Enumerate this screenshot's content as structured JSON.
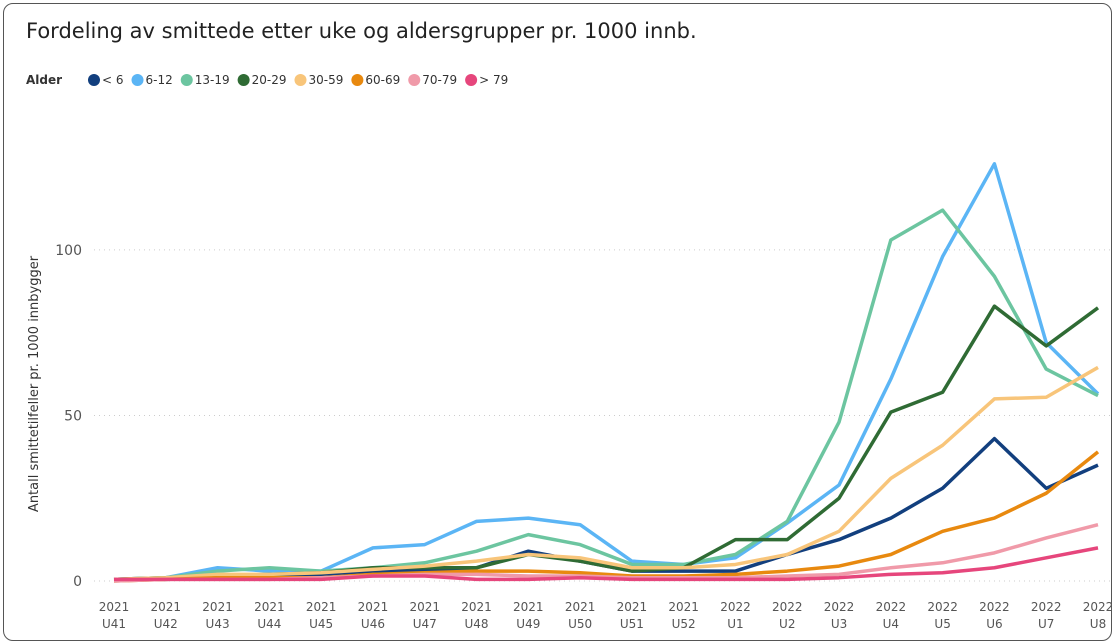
{
  "chart_data": {
    "type": "line",
    "title": "Fordeling av smittede etter uke og aldersgrupper pr. 1000 innb.",
    "legend_title": "Alder",
    "y_label": "Antall smittetilfeller pr. 1000 innbygger",
    "category_years": [
      "2021",
      "2021",
      "2021",
      "2021",
      "2021",
      "2021",
      "2021",
      "2021",
      "2021",
      "2021",
      "2021",
      "2021",
      "2022",
      "2022",
      "2022",
      "2022",
      "2022",
      "2022",
      "2022",
      "2022"
    ],
    "categories": [
      "U41",
      "U42",
      "U43",
      "U44",
      "U45",
      "U46",
      "U47",
      "U48",
      "U49",
      "U50",
      "U51",
      "U52",
      "U1",
      "U2",
      "U3",
      "U4",
      "U5",
      "U6",
      "U7",
      "U8"
    ],
    "ylim": [
      0,
      135
    ],
    "yticks": [
      0,
      50,
      100
    ],
    "grid": true,
    "series": [
      {
        "name": "< 6",
        "color": "#123f7e",
        "values": [
          0.5,
          0.5,
          1,
          1.5,
          2,
          3,
          3,
          4,
          9,
          6,
          3,
          3,
          3,
          8,
          12.5,
          19,
          28,
          43,
          28,
          35
        ]
      },
      {
        "name": "6-12",
        "color": "#5bb5f5",
        "values": [
          0.5,
          1,
          4,
          3,
          3,
          10,
          11,
          18,
          19,
          17,
          6,
          5,
          7,
          17.5,
          29,
          61,
          98,
          126,
          72,
          56.5
        ]
      },
      {
        "name": "13-19",
        "color": "#6cc5a0",
        "values": [
          0.5,
          1,
          3,
          4,
          3,
          4,
          5.5,
          9,
          14,
          11,
          5,
          5,
          8,
          18,
          48,
          103,
          112,
          92,
          64,
          56
        ]
      },
      {
        "name": "20-29",
        "color": "#2f6b34",
        "values": [
          0.5,
          1,
          1.5,
          2,
          2.5,
          4,
          4,
          4,
          8,
          6,
          3,
          4,
          12.5,
          12.5,
          25,
          51,
          57,
          83,
          71,
          82.5
        ]
      },
      {
        "name": "30-59",
        "color": "#f8c57a",
        "values": [
          0.5,
          1,
          2,
          2,
          2.5,
          3.5,
          4.5,
          6,
          8,
          7,
          4,
          4,
          5,
          8,
          15,
          31,
          41,
          55,
          55.5,
          64.5
        ]
      },
      {
        "name": "60-69",
        "color": "#e8890f",
        "values": [
          0,
          0.5,
          1,
          1,
          1,
          2,
          2.5,
          3,
          3,
          2.5,
          1.5,
          1.5,
          2,
          3,
          4.5,
          8,
          15,
          19,
          26.5,
          39
        ]
      },
      {
        "name": "70-79",
        "color": "#f09aa9",
        "values": [
          0,
          0.5,
          0.5,
          0.5,
          1,
          1.5,
          2,
          2,
          1.5,
          1.5,
          1,
          1,
          1,
          1.5,
          2,
          4,
          5.5,
          8.5,
          13,
          17
        ]
      },
      {
        "name": "> 79",
        "color": "#e6467c",
        "values": [
          0.5,
          0.5,
          0.5,
          0.5,
          0.5,
          1.5,
          1.5,
          0.5,
          0.5,
          1,
          0.5,
          0.5,
          0.5,
          0.5,
          1,
          2,
          2.5,
          4,
          7,
          10
        ]
      }
    ]
  }
}
